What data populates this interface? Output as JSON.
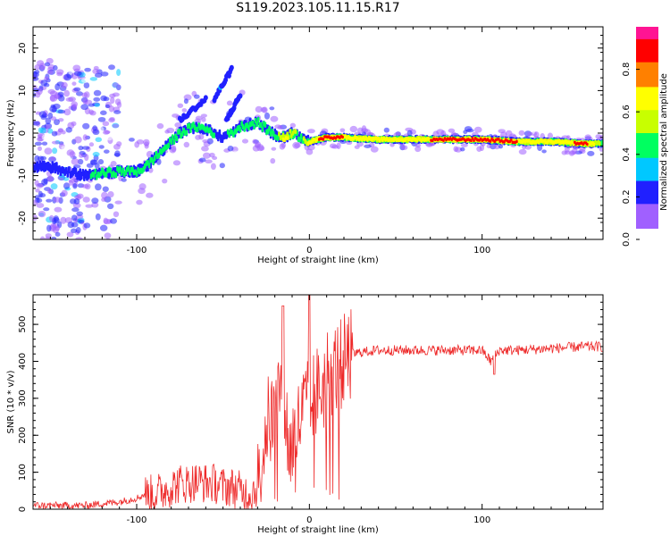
{
  "title": "S119.2023.105.11.15.R17",
  "chart_data": [
    {
      "type": "heatmap",
      "xlabel": "Height of straight line (km)",
      "ylabel": "Frequency (Hz)",
      "xlim": [
        -160,
        170
      ],
      "ylim": [
        -25,
        25
      ],
      "xticks": [
        -100,
        0,
        100
      ],
      "yticks": [
        -20,
        -10,
        0,
        10,
        20
      ],
      "colorbar": {
        "label": "Normalized spectral amplitude",
        "range": [
          0,
          1
        ],
        "ticks": [
          "0.0",
          "0.2",
          "0.4",
          "0.6",
          "0.8"
        ],
        "colormap": [
          "#ffffff",
          "#a060ff",
          "#2020ff",
          "#00c8ff",
          "#00ff60",
          "#c8ff00",
          "#ffff00",
          "#ff8000",
          "#ff0000",
          "#ff1493"
        ]
      },
      "ridge": {
        "x": [
          -160,
          -150,
          -140,
          -130,
          -120,
          -110,
          -100,
          -95,
          -90,
          -85,
          -80,
          -75,
          -70,
          -65,
          -60,
          -55,
          -50,
          -45,
          -40,
          -35,
          -30,
          -25,
          -20,
          -15,
          -10,
          -5,
          0,
          10,
          20,
          40,
          60,
          80,
          100,
          120,
          140,
          160,
          170
        ],
        "frequency_hz": [
          -8,
          -8,
          -9,
          -10,
          -9.5,
          -9,
          -9,
          -8,
          -6,
          -4,
          -2,
          0,
          1,
          1.5,
          1,
          0,
          -1,
          0,
          1.5,
          2,
          2.5,
          1,
          -0.5,
          -1,
          0,
          -1,
          -2,
          -1,
          -1,
          -1.5,
          -1.5,
          -1.5,
          -1.5,
          -2,
          -2,
          -2.5,
          -2.5
        ],
        "amplitude": [
          0.25,
          0.3,
          0.2,
          0.3,
          0.45,
          0.5,
          0.4,
          0.4,
          0.35,
          0.35,
          0.35,
          0.4,
          0.45,
          0.4,
          0.4,
          0.35,
          0.3,
          0.4,
          0.45,
          0.4,
          0.4,
          0.35,
          0.4,
          0.7,
          0.6,
          0.4,
          0.75,
          0.85,
          0.8,
          0.65,
          0.75,
          0.85,
          0.8,
          0.8,
          0.7,
          0.85,
          0.45
        ]
      }
    },
    {
      "type": "line",
      "xlabel": "Height of straight line (km)",
      "ylabel": "SNR (10 * v/v)",
      "xlim": [
        -160,
        170
      ],
      "ylim": [
        0,
        580
      ],
      "xticks": [
        -100,
        0,
        100
      ],
      "yticks": [
        0,
        100,
        200,
        300,
        400,
        500
      ],
      "color": "#ee2b2b",
      "series": [
        {
          "x": [
            -160,
            -150,
            -140,
            -130,
            -120,
            -110,
            -100,
            -95,
            -90,
            -85,
            -80,
            -75,
            -70,
            -65,
            -60,
            -55,
            -50,
            -45,
            -40,
            -35,
            -30,
            -27,
            -25,
            -20,
            -17,
            -15,
            -12,
            -10,
            -8,
            -5,
            -3,
            -1,
            0,
            1,
            2,
            5,
            8,
            10,
            15,
            20,
            25,
            30,
            40,
            60,
            80,
            100,
            105,
            110,
            120,
            140,
            160,
            170
          ],
          "values": [
            10,
            10,
            10,
            10,
            15,
            20,
            30,
            40,
            40,
            50,
            60,
            70,
            70,
            75,
            70,
            70,
            60,
            60,
            50,
            40,
            60,
            160,
            230,
            250,
            350,
            360,
            150,
            180,
            200,
            250,
            270,
            300,
            180,
            270,
            300,
            320,
            330,
            370,
            380,
            400,
            420,
            425,
            430,
            430,
            430,
            430,
            400,
            430,
            430,
            435,
            440,
            440
          ]
        }
      ]
    }
  ]
}
